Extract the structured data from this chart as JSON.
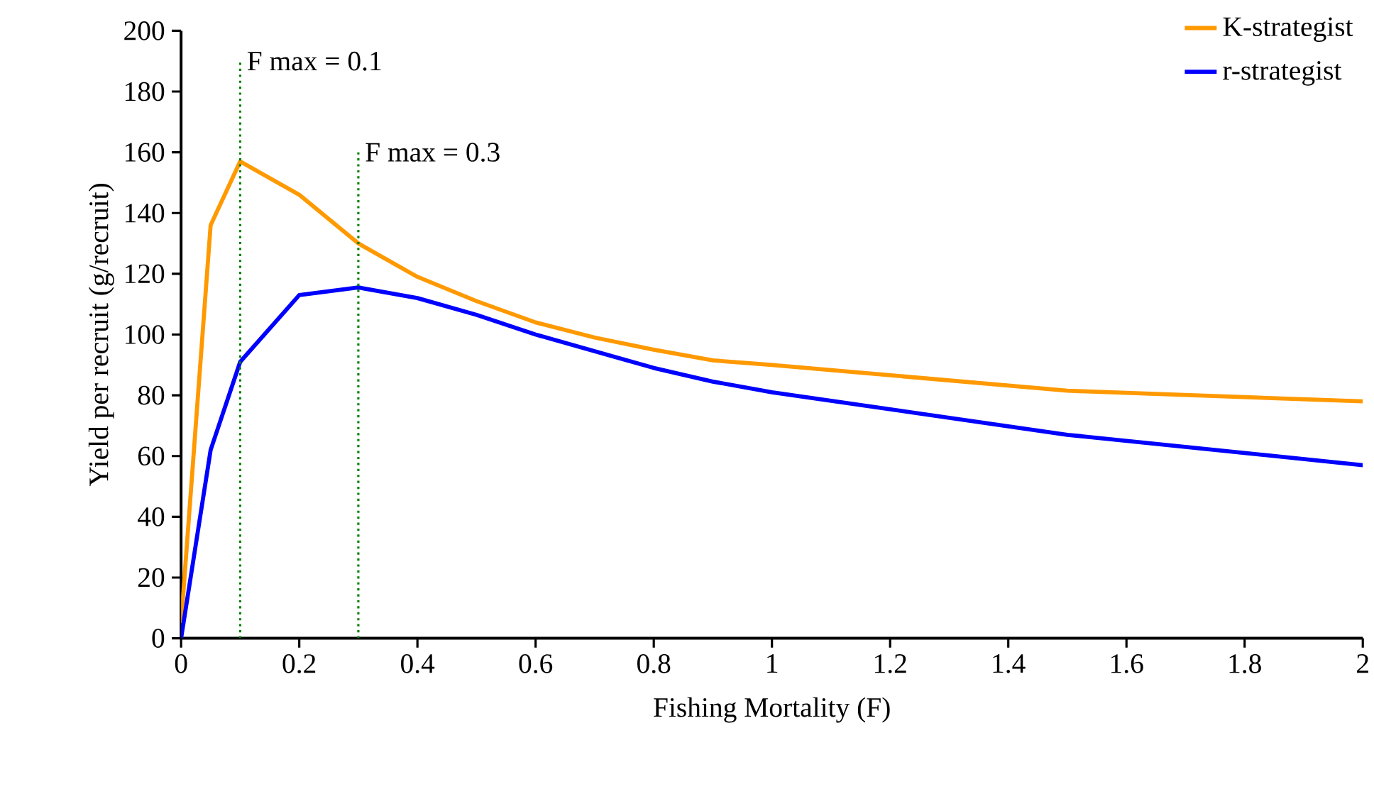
{
  "chart_data": {
    "type": "line",
    "xlabel": "Fishing Mortality (F)",
    "ylabel": "Yield per recruit (g/recruit)",
    "x": [
      0,
      0.05,
      0.1,
      0.2,
      0.3,
      0.4,
      0.5,
      0.6,
      0.7,
      0.8,
      0.9,
      1.0,
      1.5,
      2.0
    ],
    "series": [
      {
        "name": "K-strategist",
        "color": "#ff9900",
        "values": [
          5,
          136,
          157,
          146,
          130,
          119,
          111,
          104,
          99,
          95,
          91.5,
          90,
          81.5,
          78
        ]
      },
      {
        "name": "r-strategist",
        "color": "#0000ff",
        "values": [
          0,
          62,
          91,
          113,
          115.5,
          112,
          106.5,
          100,
          94.5,
          89,
          84.5,
          81,
          67,
          57
        ]
      }
    ],
    "xlim": [
      0,
      2
    ],
    "ylim": [
      0,
      200
    ],
    "xticks": [
      0,
      0.2,
      0.4,
      0.6,
      0.8,
      1,
      1.2,
      1.4,
      1.6,
      1.8,
      2
    ],
    "yticks": [
      0,
      20,
      40,
      60,
      80,
      100,
      120,
      140,
      160,
      180,
      200
    ],
    "ref_lines": [
      {
        "axis": "x",
        "value": 0.1,
        "label": "F max = 0.1",
        "color": "#008000",
        "line_style": "dotted"
      },
      {
        "axis": "x",
        "value": 0.3,
        "label": "F max = 0.3",
        "color": "#008000",
        "line_style": "dotted"
      }
    ],
    "grid": false,
    "legend": "top right",
    "marker": "none",
    "line_style": "solid"
  }
}
